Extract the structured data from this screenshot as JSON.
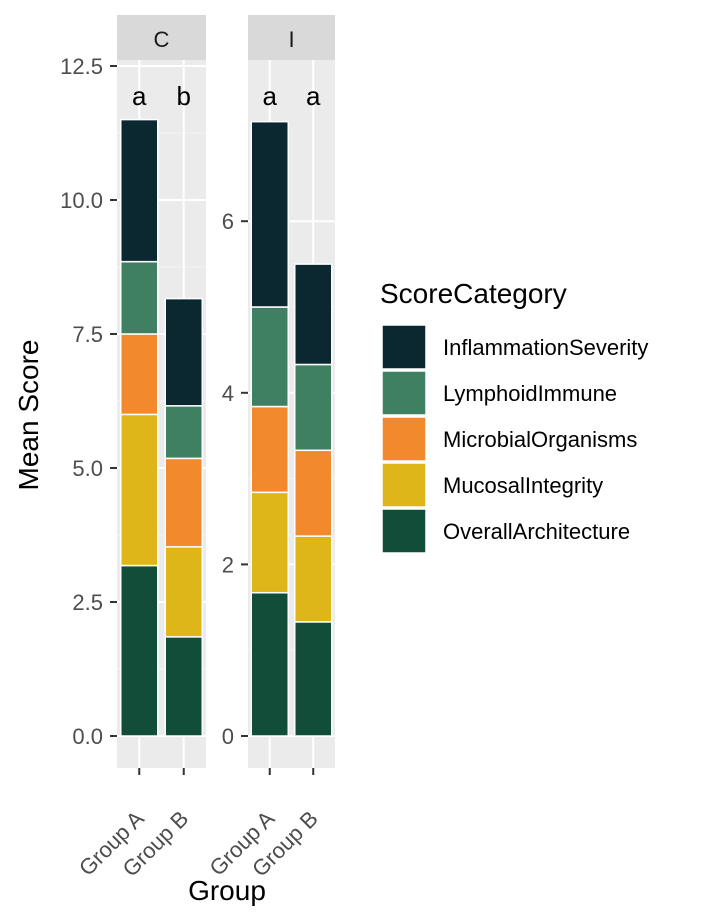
{
  "chart_data": {
    "type": "bar",
    "stacked": true,
    "xlabel": "Group",
    "ylabel": "Mean Score",
    "categories": [
      "Group A",
      "Group B"
    ],
    "legend": {
      "title": "ScoreCategory",
      "position": "right",
      "items": [
        "InflammationSeverity",
        "LymphoidImmune",
        "MicrobialOrganisms",
        "MucosalIntegrity",
        "OverallArchitecture"
      ]
    },
    "colors": {
      "InflammationSeverity": "#0b2730",
      "LymphoidImmune": "#3f7f62",
      "MicrobialOrganisms": "#f28a2d",
      "MucosalIntegrity": "#dfb619",
      "OverallArchitecture": "#114d38"
    },
    "facets": [
      {
        "label": "C",
        "ylim": [
          -0.55,
          13.0
        ],
        "yticks": [
          0,
          2.5,
          5,
          7.5,
          10,
          12.5
        ],
        "ytick_labels": [
          "0.0",
          "2.5",
          "5.0",
          "7.5",
          "10.0",
          "12.5"
        ],
        "significance": [
          "a",
          "b"
        ],
        "series": [
          {
            "name": "OverallArchitecture",
            "values": [
              3.18,
              1.85
            ]
          },
          {
            "name": "MucosalIntegrity",
            "values": [
              2.82,
              1.68
            ]
          },
          {
            "name": "MicrobialOrganisms",
            "values": [
              1.5,
              1.65
            ]
          },
          {
            "name": "LymphoidImmune",
            "values": [
              1.35,
              0.98
            ]
          },
          {
            "name": "InflammationSeverity",
            "values": [
              2.65,
              2.0
            ]
          }
        ]
      },
      {
        "label": "I",
        "ylim": [
          -0.35,
          7.9
        ],
        "yticks": [
          0,
          2,
          4,
          6
        ],
        "ytick_labels": [
          "0",
          "2",
          "4",
          "6"
        ],
        "significance": [
          "a",
          "a"
        ],
        "series": [
          {
            "name": "OverallArchitecture",
            "values": [
              1.67,
              1.33
            ]
          },
          {
            "name": "MucosalIntegrity",
            "values": [
              1.17,
              1.0
            ]
          },
          {
            "name": "MicrobialOrganisms",
            "values": [
              1.0,
              1.0
            ]
          },
          {
            "name": "LymphoidImmune",
            "values": [
              1.16,
              1.0
            ]
          },
          {
            "name": "InflammationSeverity",
            "values": [
              2.16,
              1.17
            ]
          }
        ]
      }
    ]
  }
}
